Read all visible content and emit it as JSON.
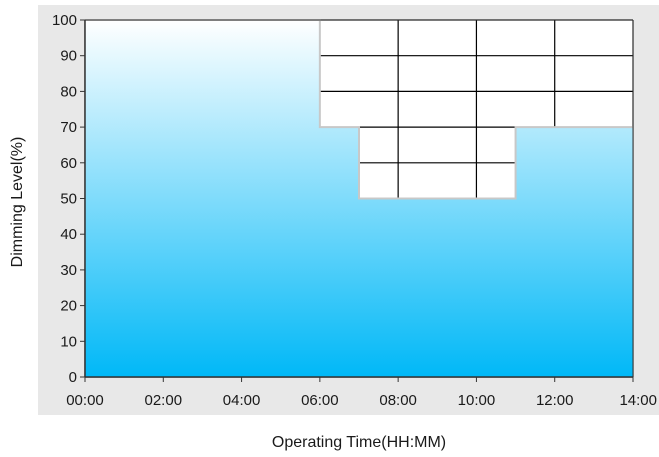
{
  "chart_data": {
    "type": "area",
    "title": "",
    "xlabel": "Operating Time(HH:MM)",
    "ylabel": "Dimming Level(%)",
    "x": [
      "00:00",
      "02:00",
      "04:00",
      "06:00",
      "07:00",
      "08:00",
      "10:00",
      "11:00",
      "12:00",
      "14:00"
    ],
    "x_hours": [
      0,
      2,
      4,
      6,
      7,
      8,
      10,
      11,
      12,
      14
    ],
    "series": [
      {
        "step_points": [
          [
            0,
            100
          ],
          [
            6,
            100
          ],
          [
            6,
            70
          ],
          [
            7,
            70
          ],
          [
            7,
            50
          ],
          [
            11,
            50
          ],
          [
            11,
            70
          ],
          [
            14,
            70
          ],
          [
            14,
            0
          ],
          [
            0,
            0
          ]
        ]
      }
    ],
    "xlim": [
      0,
      14
    ],
    "ylim": [
      0,
      100
    ],
    "x_ticks": [
      "00:00",
      "02:00",
      "04:00",
      "06:00",
      "08:00",
      "10:00",
      "12:00",
      "14:00"
    ],
    "x_tick_hours": [
      0,
      2,
      4,
      6,
      8,
      10,
      12,
      14
    ],
    "y_ticks": [
      0,
      10,
      20,
      30,
      40,
      50,
      60,
      70,
      80,
      90,
      100
    ],
    "grid_x_hours": [
      0,
      2,
      4,
      6,
      8,
      10,
      12,
      14
    ],
    "grid_y_values": [
      0,
      10,
      20,
      30,
      40,
      50,
      60,
      70,
      80,
      90,
      100
    ],
    "grid": true,
    "legend": "none",
    "colors": {
      "plot_bg": "#e8e8e8",
      "fill_top": "#ffffff",
      "fill_bottom": "#00b8f7",
      "axis": "#333333",
      "gridline": "#000000",
      "step_edge": "#c8c8c8"
    }
  }
}
